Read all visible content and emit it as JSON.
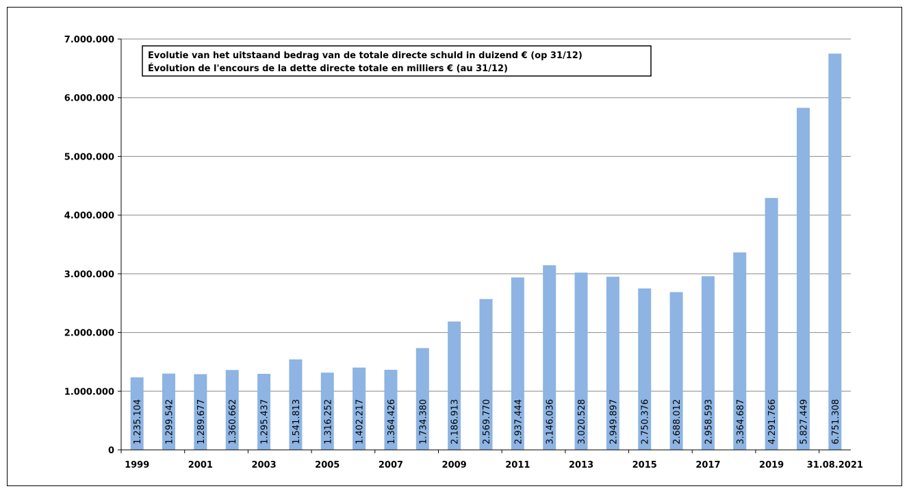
{
  "chart_data": {
    "type": "bar",
    "title_lines": [
      "Evolutie van het uitstaand bedrag van de totale directe schuld in duizend € (op 31/12)",
      "Évolution de l'encours de la dette directe totale en milliers € (au 31/12)"
    ],
    "categories": [
      "1999",
      "2000",
      "2001",
      "2002",
      "2003",
      "2004",
      "2005",
      "2006",
      "2007",
      "2008",
      "2009",
      "2010",
      "2011",
      "2012",
      "2013",
      "2014",
      "2015",
      "2016",
      "2017",
      "2018",
      "2019",
      "2020",
      "31.08.2021"
    ],
    "x_tick_labels": [
      "1999",
      "",
      "2001",
      "",
      "2003",
      "",
      "2005",
      "",
      "2007",
      "",
      "2009",
      "",
      "2011",
      "",
      "2013",
      "",
      "2015",
      "",
      "2017",
      "",
      "2019",
      "",
      "31.08.2021"
    ],
    "values": [
      1235104,
      1299542,
      1289677,
      1360662,
      1295437,
      1541813,
      1316252,
      1402217,
      1364426,
      1734380,
      2186913,
      2569770,
      2937444,
      3146036,
      3020528,
      2949897,
      2750376,
      2688012,
      2958593,
      3364687,
      4291766,
      5827449,
      6751308
    ],
    "data_labels": [
      "1.235.104",
      "1.299.542",
      "1.289.677",
      "1.360.662",
      "1.295.437",
      "1.541.813",
      "1.316.252",
      "1.402.217",
      "1.364.426",
      "1.734.380",
      "2.186.913",
      "2.569.770",
      "2.937.444",
      "3.146.036",
      "3.020.528",
      "2.949.897",
      "2.750.376",
      "2.688.012",
      "2.958.593",
      "3.364.687",
      "4.291.766",
      "5.827.449",
      "6.751.308"
    ],
    "y_ticks": [
      0,
      1000000,
      2000000,
      3000000,
      4000000,
      5000000,
      6000000,
      7000000
    ],
    "y_tick_labels": [
      "0",
      "1.000.000",
      "2.000.000",
      "3.000.000",
      "4.000.000",
      "5.000.000",
      "6.000.000",
      "7.000.000"
    ],
    "ylim": [
      0,
      7000000
    ],
    "grid": true,
    "bar_color": "#8db4e2",
    "grid_color": "#888888"
  }
}
